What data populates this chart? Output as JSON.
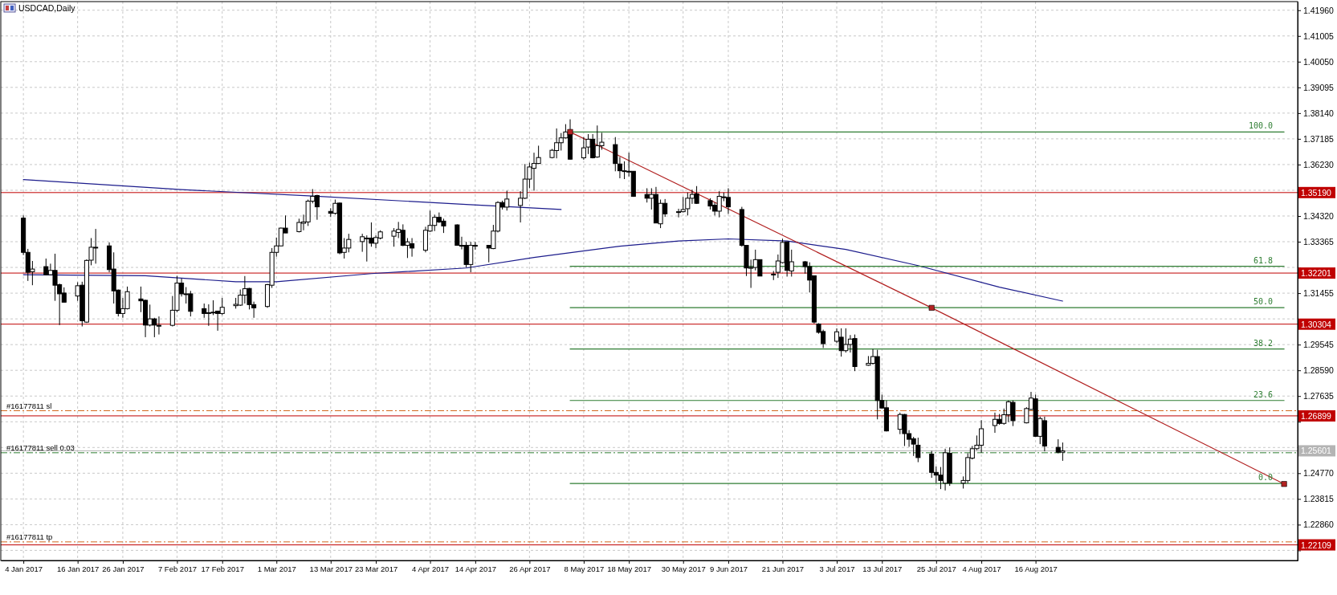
{
  "chart_data": {
    "type": "candlestick",
    "title": "USDCAD,Daily",
    "grid": true,
    "xlim": [
      "2016-12-30",
      "2017-10-13"
    ],
    "ylim": [
      1.2153,
      1.4228
    ],
    "xticks": [
      {
        "value": "2017-01-04",
        "label": "4 Jan 2017"
      },
      {
        "value": "2017-01-16",
        "label": "16 Jan 2017"
      },
      {
        "value": "2017-01-26",
        "label": "26 Jan 2017"
      },
      {
        "value": "2017-02-07",
        "label": "7 Feb 2017"
      },
      {
        "value": "2017-02-17",
        "label": "17 Feb 2017"
      },
      {
        "value": "2017-03-01",
        "label": "1 Mar 2017"
      },
      {
        "value": "2017-03-13",
        "label": "13 Mar 2017"
      },
      {
        "value": "2017-03-23",
        "label": "23 Mar 2017"
      },
      {
        "value": "2017-04-04",
        "label": "4 Apr 2017"
      },
      {
        "value": "2017-04-14",
        "label": "14 Apr 2017"
      },
      {
        "value": "2017-04-26",
        "label": "26 Apr 2017"
      },
      {
        "value": "2017-05-08",
        "label": "8 May 2017"
      },
      {
        "value": "2017-05-18",
        "label": "18 May 2017"
      },
      {
        "value": "2017-05-30",
        "label": "30 May 2017"
      },
      {
        "value": "2017-06-09",
        "label": "9 Jun 2017"
      },
      {
        "value": "2017-06-21",
        "label": "21 Jun 2017"
      },
      {
        "value": "2017-07-03",
        "label": "3 Jul 2017"
      },
      {
        "value": "2017-07-13",
        "label": "13 Jul 2017"
      },
      {
        "value": "2017-07-25",
        "label": "25 Jul 2017"
      },
      {
        "value": "2017-08-04",
        "label": "4 Aug 2017"
      },
      {
        "value": "2017-08-16",
        "label": "16 Aug 2017"
      }
    ],
    "yticks": [
      {
        "value": 1.4196,
        "label": "1.41960"
      },
      {
        "value": 1.41005,
        "label": "1.41005"
      },
      {
        "value": 1.4005,
        "label": "1.40050"
      },
      {
        "value": 1.39095,
        "label": "1.39095"
      },
      {
        "value": 1.3814,
        "label": "1.38140"
      },
      {
        "value": 1.37185,
        "label": "1.37185"
      },
      {
        "value": 1.3623,
        "label": "1.36230"
      },
      {
        "value": 1.35275,
        "label": null
      },
      {
        "value": 1.3432,
        "label": "1.34320"
      },
      {
        "value": 1.33365,
        "label": "1.33365"
      },
      {
        "value": 1.3241,
        "label": null
      },
      {
        "value": 1.31455,
        "label": "1.31455"
      },
      {
        "value": 1.305,
        "label": null
      },
      {
        "value": 1.29545,
        "label": "1.29545"
      },
      {
        "value": 1.2859,
        "label": "1.28590"
      },
      {
        "value": 1.27635,
        "label": "1.27635"
      },
      {
        "value": 1.2668,
        "label": null
      },
      {
        "value": 1.25725,
        "label": null
      },
      {
        "value": 1.2477,
        "label": "1.24770"
      },
      {
        "value": 1.23815,
        "label": "1.23815"
      },
      {
        "value": 1.2286,
        "label": "1.22860"
      },
      {
        "value": 1.21905,
        "label": null
      }
    ],
    "x": [
      "2017-01-04",
      "2017-01-05",
      "2017-01-06",
      "2017-01-09",
      "2017-01-10",
      "2017-01-11",
      "2017-01-12",
      "2017-01-13",
      "2017-01-16",
      "2017-01-17",
      "2017-01-18",
      "2017-01-19",
      "2017-01-20",
      "2017-01-23",
      "2017-01-24",
      "2017-01-25",
      "2017-01-26",
      "2017-01-27",
      "2017-01-30",
      "2017-01-31",
      "2017-02-01",
      "2017-02-02",
      "2017-02-03",
      "2017-02-06",
      "2017-02-07",
      "2017-02-08",
      "2017-02-09",
      "2017-02-10",
      "2017-02-13",
      "2017-02-14",
      "2017-02-15",
      "2017-02-16",
      "2017-02-17",
      "2017-02-20",
      "2017-02-21",
      "2017-02-22",
      "2017-02-23",
      "2017-02-24",
      "2017-02-27",
      "2017-02-28",
      "2017-03-01",
      "2017-03-02",
      "2017-03-03",
      "2017-03-06",
      "2017-03-07",
      "2017-03-08",
      "2017-03-09",
      "2017-03-10",
      "2017-03-13",
      "2017-03-14",
      "2017-03-15",
      "2017-03-16",
      "2017-03-17",
      "2017-03-20",
      "2017-03-21",
      "2017-03-22",
      "2017-03-23",
      "2017-03-24",
      "2017-03-27",
      "2017-03-28",
      "2017-03-29",
      "2017-03-30",
      "2017-03-31",
      "2017-04-03",
      "2017-04-04",
      "2017-04-05",
      "2017-04-06",
      "2017-04-07",
      "2017-04-10",
      "2017-04-11",
      "2017-04-12",
      "2017-04-13",
      "2017-04-14",
      "2017-04-17",
      "2017-04-18",
      "2017-04-19",
      "2017-04-20",
      "2017-04-21",
      "2017-04-24",
      "2017-04-25",
      "2017-04-26",
      "2017-04-27",
      "2017-04-28",
      "2017-05-01",
      "2017-05-02",
      "2017-05-03",
      "2017-05-04",
      "2017-05-05",
      "2017-05-08",
      "2017-05-09",
      "2017-05-10",
      "2017-05-11",
      "2017-05-12",
      "2017-05-15",
      "2017-05-16",
      "2017-05-17",
      "2017-05-18",
      "2017-05-19",
      "2017-05-22",
      "2017-05-23",
      "2017-05-24",
      "2017-05-25",
      "2017-05-26",
      "2017-05-29",
      "2017-05-30",
      "2017-05-31",
      "2017-06-01",
      "2017-06-02",
      "2017-06-05",
      "2017-06-06",
      "2017-06-07",
      "2017-06-08",
      "2017-06-09",
      "2017-06-12",
      "2017-06-13",
      "2017-06-14",
      "2017-06-15",
      "2017-06-16",
      "2017-06-19",
      "2017-06-20",
      "2017-06-21",
      "2017-06-22",
      "2017-06-23",
      "2017-06-26",
      "2017-06-27",
      "2017-06-28",
      "2017-06-29",
      "2017-06-30",
      "2017-07-03",
      "2017-07-04",
      "2017-07-05",
      "2017-07-06",
      "2017-07-07",
      "2017-07-10",
      "2017-07-11",
      "2017-07-12",
      "2017-07-13",
      "2017-07-14",
      "2017-07-17",
      "2017-07-18",
      "2017-07-19",
      "2017-07-20",
      "2017-07-21",
      "2017-07-24",
      "2017-07-25",
      "2017-07-26",
      "2017-07-27",
      "2017-07-28",
      "2017-07-31",
      "2017-08-01",
      "2017-08-02",
      "2017-08-03",
      "2017-08-04",
      "2017-08-07",
      "2017-08-08",
      "2017-08-09",
      "2017-08-10",
      "2017-08-11",
      "2017-08-14",
      "2017-08-15",
      "2017-08-16",
      "2017-08-17",
      "2017-08-18",
      "2017-08-21",
      "2017-08-22"
    ],
    "ohlc": [
      [
        1.3424,
        1.3434,
        1.3287,
        1.3297
      ],
      [
        1.3297,
        1.331,
        1.3191,
        1.3223
      ],
      [
        1.3225,
        1.3265,
        1.3175,
        1.3235
      ],
      [
        1.3244,
        1.3274,
        1.3212,
        1.3214
      ],
      [
        1.3214,
        1.3255,
        1.3212,
        1.323
      ],
      [
        1.323,
        1.3292,
        1.3117,
        1.3175
      ],
      [
        1.3177,
        1.3181,
        1.3027,
        1.3143
      ],
      [
        1.3146,
        1.3167,
        1.3112,
        1.3112
      ],
      [
        1.3135,
        1.3186,
        1.3117,
        1.3173
      ],
      [
        1.3175,
        1.3188,
        1.3022,
        1.3043
      ],
      [
        1.3038,
        1.3271,
        1.3035,
        1.3267
      ],
      [
        1.3268,
        1.335,
        1.3249,
        1.3316
      ],
      [
        1.3316,
        1.3384,
        1.3255,
        1.3316
      ],
      [
        1.3321,
        1.3334,
        1.3223,
        1.3233
      ],
      [
        1.3235,
        1.3297,
        1.3107,
        1.3154
      ],
      [
        1.3157,
        1.3159,
        1.3059,
        1.307
      ],
      [
        1.307,
        1.3128,
        1.3054,
        1.3088
      ],
      [
        1.3088,
        1.317,
        1.3085,
        1.3151
      ],
      [
        1.3124,
        1.317,
        1.3075,
        1.3117
      ],
      [
        1.3119,
        1.3121,
        1.2982,
        1.3027
      ],
      [
        1.3027,
        1.3103,
        1.3022,
        1.305
      ],
      [
        1.305,
        1.3054,
        1.2982,
        1.3027
      ],
      [
        1.3026,
        1.3059,
        1.2992,
        1.3024
      ],
      [
        1.3026,
        1.3135,
        1.3022,
        1.3082
      ],
      [
        1.3082,
        1.321,
        1.3075,
        1.3183
      ],
      [
        1.3183,
        1.32,
        1.3133,
        1.3143
      ],
      [
        1.3143,
        1.3168,
        1.3107,
        1.3143
      ],
      [
        1.3143,
        1.3154,
        1.3059,
        1.3078
      ],
      [
        1.3088,
        1.3107,
        1.3054,
        1.307
      ],
      [
        1.3073,
        1.3104,
        1.3024,
        1.3073
      ],
      [
        1.3075,
        1.3119,
        1.3064,
        1.3075
      ],
      [
        1.3079,
        1.3079,
        1.3006,
        1.307
      ],
      [
        1.307,
        1.3128,
        1.3064,
        1.3093
      ],
      [
        1.3099,
        1.3128,
        1.3088,
        1.3104
      ],
      [
        1.3101,
        1.3159,
        1.3098,
        1.3138
      ],
      [
        1.3138,
        1.3209,
        1.3107,
        1.3162
      ],
      [
        1.3163,
        1.3165,
        1.3085,
        1.3103
      ],
      [
        1.3103,
        1.3114,
        1.3054,
        1.3091
      ],
      [
        1.3096,
        1.318,
        1.3091,
        1.3177
      ],
      [
        1.3175,
        1.3313,
        1.3165,
        1.3297
      ],
      [
        1.3297,
        1.3352,
        1.3281,
        1.3321
      ],
      [
        1.3321,
        1.3389,
        1.332,
        1.3387
      ],
      [
        1.3387,
        1.3434,
        1.3369,
        1.3369
      ],
      [
        1.3374,
        1.3422,
        1.3371,
        1.3408
      ],
      [
        1.3405,
        1.3437,
        1.3379,
        1.341
      ],
      [
        1.341,
        1.3493,
        1.3395,
        1.3487
      ],
      [
        1.3487,
        1.3532,
        1.3479,
        1.3505
      ],
      [
        1.3508,
        1.3511,
        1.3418,
        1.3466
      ],
      [
        1.3449,
        1.3461,
        1.3428,
        1.3442
      ],
      [
        1.3442,
        1.3493,
        1.3437,
        1.3479
      ],
      [
        1.348,
        1.3482,
        1.329,
        1.3295
      ],
      [
        1.3297,
        1.335,
        1.3274,
        1.3313
      ],
      [
        1.3313,
        1.3366,
        1.3297,
        1.3345
      ],
      [
        1.3337,
        1.3366,
        1.3299,
        1.3355
      ],
      [
        1.335,
        1.336,
        1.3263,
        1.335
      ],
      [
        1.335,
        1.3408,
        1.3318,
        1.3331
      ],
      [
        1.3331,
        1.336,
        1.3313,
        1.3352
      ],
      [
        1.335,
        1.3379,
        1.3345,
        1.3373
      ],
      [
        1.3357,
        1.3387,
        1.3318,
        1.3376
      ],
      [
        1.3371,
        1.341,
        1.335,
        1.3382
      ],
      [
        1.3379,
        1.3401,
        1.332,
        1.3323
      ],
      [
        1.3323,
        1.335,
        1.3276,
        1.3336
      ],
      [
        1.3329,
        1.335,
        1.3281,
        1.3313
      ],
      [
        1.3305,
        1.3392,
        1.3297,
        1.3379
      ],
      [
        1.3376,
        1.3452,
        1.3373,
        1.3397
      ],
      [
        1.3397,
        1.3437,
        1.3376,
        1.3427
      ],
      [
        1.3427,
        1.3445,
        1.3406,
        1.341
      ],
      [
        1.3413,
        1.3422,
        1.3369,
        1.3395
      ],
      [
        1.3399,
        1.3401,
        1.3323,
        1.3323
      ],
      [
        1.3323,
        1.3355,
        1.3308,
        1.3323
      ],
      [
        1.3323,
        1.3336,
        1.3241,
        1.3252
      ],
      [
        1.3252,
        1.3336,
        1.3223,
        1.3323
      ],
      [
        1.3323,
        1.3336,
        1.3307,
        1.3323
      ],
      [
        1.3323,
        1.3323,
        1.326,
        1.3313
      ],
      [
        1.3311,
        1.3399,
        1.3309,
        1.3376
      ],
      [
        1.3376,
        1.3487,
        1.3371,
        1.3482
      ],
      [
        1.3482,
        1.3489,
        1.3456,
        1.3465
      ],
      [
        1.3465,
        1.3526,
        1.3452,
        1.3495
      ],
      [
        1.3471,
        1.3524,
        1.3408,
        1.3498
      ],
      [
        1.3498,
        1.3625,
        1.3495,
        1.3569
      ],
      [
        1.3569,
        1.363,
        1.3535,
        1.3614
      ],
      [
        1.3609,
        1.3667,
        1.3526,
        1.3627
      ],
      [
        1.3627,
        1.3693,
        1.3625,
        1.3649
      ],
      [
        1.3649,
        1.3681,
        1.3646,
        1.3676
      ],
      [
        1.3675,
        1.3757,
        1.3646,
        1.3704
      ],
      [
        1.3704,
        1.374,
        1.3675,
        1.3722
      ],
      [
        1.3722,
        1.3773,
        1.372,
        1.3744
      ],
      [
        1.3744,
        1.3791,
        1.3641,
        1.3643
      ],
      [
        1.3648,
        1.3725,
        1.3641,
        1.3685
      ],
      [
        1.3688,
        1.3736,
        1.3662,
        1.3717
      ],
      [
        1.3717,
        1.3736,
        1.3646,
        1.3648
      ],
      [
        1.3651,
        1.3768,
        1.3648,
        1.3693
      ],
      [
        1.3693,
        1.3741,
        1.3678,
        1.3706
      ],
      [
        1.3697,
        1.3725,
        1.3598,
        1.3627
      ],
      [
        1.3625,
        1.3651,
        1.3572,
        1.36
      ],
      [
        1.36,
        1.3635,
        1.3569,
        1.36
      ],
      [
        1.3598,
        1.3667,
        1.3579,
        1.3598
      ],
      [
        1.3598,
        1.3598,
        1.3503,
        1.3505
      ],
      [
        1.3512,
        1.3535,
        1.3482,
        1.3498
      ],
      [
        1.3498,
        1.3535,
        1.3456,
        1.3512
      ],
      [
        1.3512,
        1.354,
        1.3406,
        1.3406
      ],
      [
        1.3403,
        1.3493,
        1.3387,
        1.3479
      ],
      [
        1.3479,
        1.3495,
        1.3429,
        1.344
      ],
      [
        1.3448,
        1.3459,
        1.3427,
        1.3448
      ],
      [
        1.3448,
        1.3503,
        1.3445,
        1.3456
      ],
      [
        1.3459,
        1.3519,
        1.3434,
        1.3498
      ],
      [
        1.3498,
        1.353,
        1.3477,
        1.3512
      ],
      [
        1.3514,
        1.3543,
        1.3477,
        1.3479
      ],
      [
        1.3489,
        1.3498,
        1.3456,
        1.3469
      ],
      [
        1.3472,
        1.3482,
        1.3434,
        1.345
      ],
      [
        1.345,
        1.3524,
        1.3427,
        1.3505
      ],
      [
        1.3503,
        1.3519,
        1.3487,
        1.3503
      ],
      [
        1.3501,
        1.3535,
        1.344,
        1.3466
      ],
      [
        1.3456,
        1.3466,
        1.3318,
        1.3323
      ],
      [
        1.3323,
        1.3323,
        1.3209,
        1.3239
      ],
      [
        1.3241,
        1.327,
        1.3165,
        1.3241
      ],
      [
        1.3241,
        1.3307,
        1.323,
        1.327
      ],
      [
        1.327,
        1.327,
        1.3209,
        1.3209
      ],
      [
        1.3216,
        1.3228,
        1.3194,
        1.3216
      ],
      [
        1.3223,
        1.3289,
        1.3202,
        1.3265
      ],
      [
        1.3259,
        1.3347,
        1.3257,
        1.3334
      ],
      [
        1.3336,
        1.3336,
        1.3207,
        1.323
      ],
      [
        1.3228,
        1.3307,
        1.3207,
        1.3262
      ],
      [
        1.3262,
        1.3265,
        1.3218,
        1.3244
      ],
      [
        1.3244,
        1.326,
        1.3148,
        1.3194
      ],
      [
        1.321,
        1.321,
        1.3033,
        1.3038
      ],
      [
        1.3031,
        1.3034,
        1.2995,
        1.3
      ],
      [
        1.3003,
        1.301,
        1.2942,
        1.2958
      ],
      [
        1.2967,
        1.3015,
        1.296,
        1.3002
      ],
      [
        1.2982,
        1.3015,
        1.291,
        1.2932
      ],
      [
        1.2932,
        1.3015,
        1.2925,
        1.2955
      ],
      [
        1.2955,
        1.299,
        1.2925,
        1.2975
      ],
      [
        1.2977,
        1.2992,
        1.2856,
        1.2873
      ],
      [
        1.2878,
        1.2912,
        1.2876,
        1.2885
      ],
      [
        1.2885,
        1.2938,
        1.288,
        1.291
      ],
      [
        1.291,
        1.2935,
        1.2677,
        1.2747
      ],
      [
        1.2747,
        1.2769,
        1.2717,
        1.2719
      ],
      [
        1.272,
        1.2747,
        1.2632,
        1.2634
      ],
      [
        1.264,
        1.2702,
        1.2622,
        1.2695
      ],
      [
        1.2695,
        1.2697,
        1.2578,
        1.2624
      ],
      [
        1.2624,
        1.2637,
        1.2575,
        1.2603
      ],
      [
        1.2605,
        1.2612,
        1.2541,
        1.2585
      ],
      [
        1.2581,
        1.2609,
        1.2518,
        1.2535
      ],
      [
        1.2548,
        1.256,
        1.246,
        1.248
      ],
      [
        1.248,
        1.2502,
        1.244,
        1.247
      ],
      [
        1.247,
        1.25,
        1.2418,
        1.245
      ],
      [
        1.244,
        1.2568,
        1.2413,
        1.2553
      ],
      [
        1.2551,
        1.2573,
        1.243,
        1.244
      ],
      [
        1.244,
        1.2465,
        1.242,
        1.245
      ],
      [
        1.245,
        1.2551,
        1.244,
        1.2535
      ],
      [
        1.2533,
        1.2578,
        1.2528,
        1.2568
      ],
      [
        1.2568,
        1.2617,
        1.2563,
        1.2581
      ],
      [
        1.2581,
        1.2674,
        1.2553,
        1.2642
      ],
      [
        1.2654,
        1.2702,
        1.2627,
        1.2677
      ],
      [
        1.2677,
        1.2697,
        1.2657,
        1.2662
      ],
      [
        1.2662,
        1.2717,
        1.2657,
        1.2694
      ],
      [
        1.2694,
        1.2747,
        1.2667,
        1.2742
      ],
      [
        1.274,
        1.2747,
        1.2652,
        1.2672
      ],
      [
        1.2664,
        1.2722,
        1.2662,
        1.2717
      ],
      [
        1.2714,
        1.2779,
        1.2712,
        1.2756
      ],
      [
        1.2753,
        1.2769,
        1.2612,
        1.2614
      ],
      [
        1.2614,
        1.2687,
        1.2585,
        1.268
      ],
      [
        1.2672,
        1.2687,
        1.2558,
        1.2578
      ],
      [
        1.2573,
        1.2603,
        1.2551,
        1.2555
      ],
      [
        1.2555,
        1.2591,
        1.2523,
        1.256
      ]
    ],
    "series": [
      {
        "type": "line",
        "color": "#1c1c8c",
        "x": [
          "2017-01-04",
          "2017-02-08",
          "2017-03-09",
          "2017-04-12",
          "2017-05-03"
        ],
        "values": [
          1.3567,
          1.353,
          1.3506,
          1.3475,
          1.3456
        ]
      },
      {
        "type": "line",
        "color": "#1c1c8c",
        "x": [
          "2017-01-04",
          "2017-01-31",
          "2017-02-20",
          "2017-03-01",
          "2017-03-22",
          "2017-04-12",
          "2017-04-27",
          "2017-05-16",
          "2017-05-29",
          "2017-06-09",
          "2017-06-22",
          "2017-07-05",
          "2017-07-21",
          "2017-08-08",
          "2017-08-22"
        ],
        "values": [
          1.3214,
          1.321,
          1.3188,
          1.3188,
          1.3218,
          1.3239,
          1.3278,
          1.332,
          1.3339,
          1.3347,
          1.3339,
          1.3308,
          1.3248,
          1.3168,
          1.3116
        ]
      },
      {
        "type": "line",
        "name": "100.0",
        "color": "#2e7d32",
        "x": [
          "2017-05-05",
          "2017-10-10"
        ],
        "values": [
          1.3744,
          1.3744
        ]
      },
      {
        "type": "line",
        "name": "61.8",
        "color": "#2e7d32",
        "x": [
          "2017-05-05",
          "2017-10-10"
        ],
        "values": [
          1.3245,
          1.3245
        ]
      },
      {
        "type": "line",
        "name": "50.0",
        "color": "#2e7d32",
        "x": [
          "2017-05-05",
          "2017-10-10"
        ],
        "values": [
          1.3092,
          1.3092
        ]
      },
      {
        "type": "line",
        "name": "38.2",
        "color": "#2e7d32",
        "x": [
          "2017-05-05",
          "2017-10-10"
        ],
        "values": [
          1.2938,
          1.2938
        ]
      },
      {
        "type": "line",
        "name": "23.6",
        "color": "#2e7d32",
        "x": [
          "2017-05-05",
          "2017-10-10"
        ],
        "values": [
          1.2747,
          1.2747
        ]
      },
      {
        "type": "line",
        "name": "0.0",
        "color": "#2e7d32",
        "x": [
          "2017-05-05",
          "2017-10-10"
        ],
        "values": [
          1.2439,
          1.2439
        ]
      },
      {
        "type": "line",
        "color": "#b22222",
        "marker": "square",
        "x": [
          "2017-05-05",
          "2017-07-24",
          "2017-10-10"
        ],
        "values": [
          1.3744,
          1.3091,
          1.2437
        ]
      }
    ],
    "ref_lines": [
      {
        "axis": "y",
        "value": 1.3519,
        "label": "1.35190",
        "color": "#c00000"
      },
      {
        "axis": "y",
        "value": 1.32201,
        "label": "1.32201",
        "color": "#c00000"
      },
      {
        "axis": "y",
        "value": 1.30304,
        "label": "1.30304",
        "color": "#c00000"
      },
      {
        "axis": "y",
        "value": 1.26899,
        "label": "1.26899",
        "color": "#c00000"
      },
      {
        "axis": "y",
        "value": 1.22109,
        "label": "1.22109",
        "color": "#c00000"
      },
      {
        "axis": "y",
        "value": 1.25601,
        "label": "1.25601",
        "color": "#b4b4b4"
      },
      {
        "axis": "y",
        "value": 1.2709,
        "label": "#16177811 sl",
        "color": "#d2691e",
        "line_style": "dashed"
      },
      {
        "axis": "y",
        "value": 1.2553,
        "label": "#16177811 sell 0.03",
        "color": "#2e7d32",
        "line_style": "dashed"
      },
      {
        "axis": "y",
        "value": 1.2222,
        "label": "#16177811 tp",
        "color": "#d2691e",
        "line_style": "dashed"
      }
    ]
  }
}
